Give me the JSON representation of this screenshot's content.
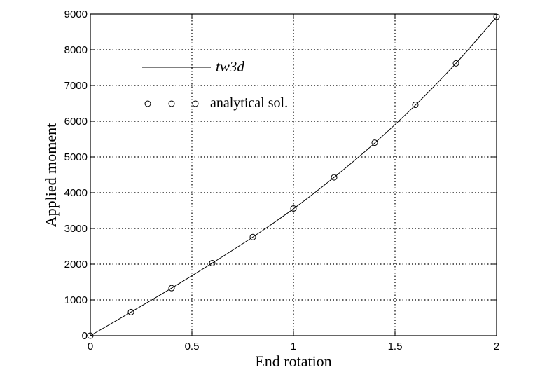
{
  "chart_data": {
    "type": "line",
    "xlabel": "End rotation",
    "ylabel": "Applied moment",
    "xlim": [
      0,
      2
    ],
    "ylim": [
      0,
      9000
    ],
    "grid": true,
    "grid_style": "dotted",
    "x_ticks": [
      "0",
      "0.5",
      "1",
      "1.5",
      "2"
    ],
    "y_ticks": [
      "0",
      "1000",
      "2000",
      "3000",
      "4000",
      "5000",
      "6000",
      "7000",
      "8000",
      "9000"
    ],
    "legend_placement": "top-left",
    "series": [
      {
        "name": "tw3d",
        "style": "solid-line",
        "x": [
          0,
          0.2,
          0.4,
          0.6,
          0.8,
          1.0,
          1.2,
          1.4,
          1.6,
          1.8,
          2.0
        ],
        "y": [
          0,
          660,
          1330,
          2030,
          2760,
          3550,
          4430,
          5390,
          6450,
          7620,
          8920
        ]
      },
      {
        "name": "analytical sol.",
        "style": "circle-markers",
        "x": [
          0,
          0.2,
          0.4,
          0.6,
          0.8,
          1.0,
          1.2,
          1.4,
          1.6,
          1.8,
          2.0
        ],
        "y": [
          0,
          660,
          1330,
          2030,
          2760,
          3560,
          4430,
          5400,
          6460,
          7620,
          8920
        ]
      }
    ],
    "colors": {
      "line": "#000000",
      "grid": "#000000",
      "background": "#ffffff"
    }
  }
}
